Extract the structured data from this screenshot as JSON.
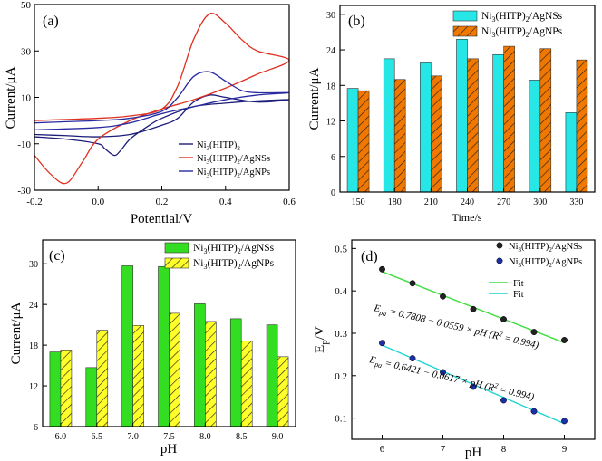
{
  "colors": {
    "ni": "#1c1c7a",
    "agnss_cv": "#e0301e",
    "agnps_cv": "#2a2aa0",
    "bar_cyan": "#27e6e6",
    "bar_orange": "#f07800",
    "bar_green": "#33dd22",
    "bar_yellow": "#ffff2a",
    "dots_black": "#222222",
    "dots_blue": "#1a2fa8",
    "fit_green": "#40dd40",
    "fit_cyan": "#20d4d4"
  },
  "chart_data": [
    {
      "panel": "a",
      "panel_label": "(a)",
      "type": "line",
      "title": "",
      "xlabel": "Potential/V",
      "ylabel": "Current/μA",
      "xlim": [
        -0.2,
        0.6
      ],
      "ylim": [
        -30,
        50
      ],
      "xticks": [
        -0.2,
        0.0,
        0.2,
        0.4,
        0.6
      ],
      "xtick_labels": [
        "-0.2",
        "0.0",
        "0.2",
        "0.4",
        "0.6"
      ],
      "yticks": [
        -30,
        -10,
        10,
        30,
        50
      ],
      "ytick_labels": [
        "-30",
        "-10",
        "10",
        "30",
        "50"
      ],
      "legend_position": "bottom-right",
      "series": [
        {
          "name": "Ni3(HITP)2",
          "legend_main": "Ni",
          "legend_sub1": "3",
          "legend_mid": "(HITP)",
          "legend_sub2": "2",
          "legend_tail": "",
          "color": "ni",
          "x": [
            -0.2,
            -0.1,
            0.0,
            0.1,
            0.2,
            0.25,
            0.3,
            0.35,
            0.4,
            0.5,
            0.6,
            0.5,
            0.4,
            0.3,
            0.2,
            0.15,
            0.1,
            0.07,
            0.05,
            0.02,
            0.0,
            -0.1,
            -0.2
          ],
          "y": [
            -6,
            -6.5,
            -7,
            -6,
            -2,
            1,
            8,
            11,
            10,
            8,
            9,
            8.5,
            7.5,
            6,
            1,
            -3,
            -8,
            -13,
            -15,
            -12,
            -10,
            -8,
            -7
          ]
        },
        {
          "name": "Ni3(HITP)2/AgNSs",
          "legend_main": "Ni",
          "legend_sub1": "3",
          "legend_mid": "(HITP)",
          "legend_sub2": "2",
          "legend_tail": "/AgNSs",
          "color": "agnss_cv",
          "x": [
            -0.2,
            -0.1,
            0.0,
            0.1,
            0.2,
            0.25,
            0.3,
            0.35,
            0.4,
            0.45,
            0.5,
            0.6,
            0.5,
            0.4,
            0.3,
            0.2,
            0.1,
            0.0,
            -0.05,
            -0.1,
            -0.15,
            -0.2
          ],
          "y": [
            0,
            0.5,
            1,
            2,
            5,
            15,
            35,
            46,
            42,
            35,
            30,
            26,
            20,
            14,
            9,
            5,
            0,
            -8,
            -18,
            -27,
            -23,
            -15
          ]
        },
        {
          "name": "Ni3(HITP)2/AgNPs",
          "legend_main": "Ni",
          "legend_sub1": "3",
          "legend_mid": "(HITP)",
          "legend_sub2": "2",
          "legend_tail": "/AgNPs",
          "color": "agnps_cv",
          "x": [
            -0.2,
            -0.1,
            0.0,
            0.1,
            0.2,
            0.25,
            0.3,
            0.35,
            0.4,
            0.45,
            0.5,
            0.6,
            0.5,
            0.4,
            0.3,
            0.2,
            0.1,
            0.0,
            -0.2
          ],
          "y": [
            -1,
            -0.5,
            0,
            1,
            4,
            10,
            19,
            21,
            17,
            13,
            12,
            12,
            11,
            9,
            6,
            3,
            -1,
            -3,
            -4
          ]
        }
      ]
    },
    {
      "panel": "b",
      "panel_label": "(b)",
      "type": "bar",
      "title": "",
      "xlabel": "Time/s",
      "ylabel": "Current/μA",
      "categories": [
        "150",
        "180",
        "210",
        "240",
        "270",
        "300",
        "330"
      ],
      "ylim": [
        0,
        31.5
      ],
      "yticks": [
        0,
        6,
        12,
        18,
        24,
        30
      ],
      "ytick_labels": [
        "0",
        "6",
        "12",
        "18",
        "24",
        "30"
      ],
      "legend_position": "top-right",
      "series": [
        {
          "name": "Ni3(HITP)2/AgNSs",
          "legend_main": "Ni",
          "legend_sub1": "3",
          "legend_mid": "(HITP)",
          "legend_sub2": "2",
          "legend_tail": "/AgNSs",
          "color": "bar_cyan",
          "pattern": "none",
          "values": [
            17.5,
            22.5,
            21.8,
            25.8,
            23.2,
            18.9,
            13.4
          ]
        },
        {
          "name": "Ni3(HITP)2/AgNPs",
          "legend_main": "Ni",
          "legend_sub1": "3",
          "legend_mid": "(HITP)",
          "legend_sub2": "2",
          "legend_tail": "/AgNPs",
          "color": "bar_orange",
          "pattern": "hatch",
          "values": [
            17.1,
            19.0,
            19.6,
            22.5,
            24.6,
            24.2,
            22.3
          ]
        }
      ]
    },
    {
      "panel": "c",
      "panel_label": "(c)",
      "type": "bar",
      "title": "",
      "xlabel": "pH",
      "ylabel": "Current/μA",
      "categories": [
        "6.0",
        "6.5",
        "7.0",
        "7.5",
        "8.0",
        "8.5",
        "9.0"
      ],
      "ylim": [
        6,
        33.5
      ],
      "yticks": [
        6,
        12,
        18,
        24,
        30
      ],
      "ytick_labels": [
        "6",
        "12",
        "18",
        "24",
        "30"
      ],
      "legend_position": "top-right",
      "series": [
        {
          "name": "Ni3(HITP)2/AgNSs",
          "legend_main": "Ni",
          "legend_sub1": "3",
          "legend_mid": "(HITP)",
          "legend_sub2": "2",
          "legend_tail": "/AgNSs",
          "color": "bar_green",
          "pattern": "none",
          "values": [
            17.0,
            14.7,
            29.7,
            29.6,
            24.1,
            21.9,
            21.0
          ]
        },
        {
          "name": "Ni3(HITP)2/AgNPs",
          "legend_main": "Ni",
          "legend_sub1": "3",
          "legend_mid": "(HITP)",
          "legend_sub2": "2",
          "legend_tail": "/AgNPs",
          "color": "bar_yellow",
          "pattern": "hatch",
          "values": [
            17.3,
            20.2,
            20.9,
            22.7,
            21.5,
            18.6,
            16.3
          ]
        }
      ]
    },
    {
      "panel": "d",
      "panel_label": "(d)",
      "type": "scatter",
      "title": "",
      "xlabel": "pH",
      "ylabel": "Ep/V",
      "ylabel_main": "E",
      "ylabel_sub": "p",
      "ylabel_tail": "/V",
      "xlim": [
        5.5,
        9.5
      ],
      "ylim": [
        0.05,
        0.52
      ],
      "xticks": [
        6,
        7,
        8,
        9
      ],
      "xtick_labels": [
        "6",
        "7",
        "8",
        "9"
      ],
      "yticks": [
        0.1,
        0.2,
        0.3,
        0.4,
        0.5
      ],
      "ytick_labels": [
        "0.1",
        "0.2",
        "0.3",
        "0.4",
        "0.5"
      ],
      "legend_position": "top-right",
      "series": [
        {
          "name": "Ni3(HITP)2/AgNSs",
          "legend_main": "Ni",
          "legend_sub1": "3",
          "legend_mid": "(HITP)",
          "legend_sub2": "2",
          "legend_tail": "/AgNSs",
          "color": "dots_black",
          "x": [
            6.0,
            6.5,
            7.0,
            7.5,
            8.0,
            8.5,
            9.0
          ],
          "y": [
            0.451,
            0.418,
            0.387,
            0.357,
            0.333,
            0.303,
            0.284
          ]
        },
        {
          "name": "Ni3(HITP)2/AgNPs",
          "legend_main": "Ni",
          "legend_sub1": "3",
          "legend_mid": "(HITP)",
          "legend_sub2": "2",
          "legend_tail": "/AgNPs",
          "color": "dots_blue",
          "x": [
            6.0,
            6.5,
            7.0,
            7.5,
            8.0,
            8.5,
            9.0
          ],
          "y": [
            0.277,
            0.241,
            0.208,
            0.174,
            0.142,
            0.116,
            0.093
          ]
        }
      ],
      "fits": [
        {
          "name": "Fit",
          "color": "fit_green",
          "intercept": 0.7808,
          "slope": -0.0559
        },
        {
          "name": "Fit",
          "color": "fit_cyan",
          "intercept": 0.6421,
          "slope": -0.0617
        }
      ],
      "annotations": [
        {
          "main": "E",
          "sub": "pa",
          "mid": " = 0.7808 − 0.0559 × pH (",
          "r": "R",
          "sup": "2",
          "tail": " = 0.994)"
        },
        {
          "main": "E",
          "sub": "pa",
          "mid": " = 0.6421 − 0.0617 × pH (",
          "r": "R",
          "sup": "2",
          "tail": " = 0.994)"
        }
      ]
    }
  ]
}
